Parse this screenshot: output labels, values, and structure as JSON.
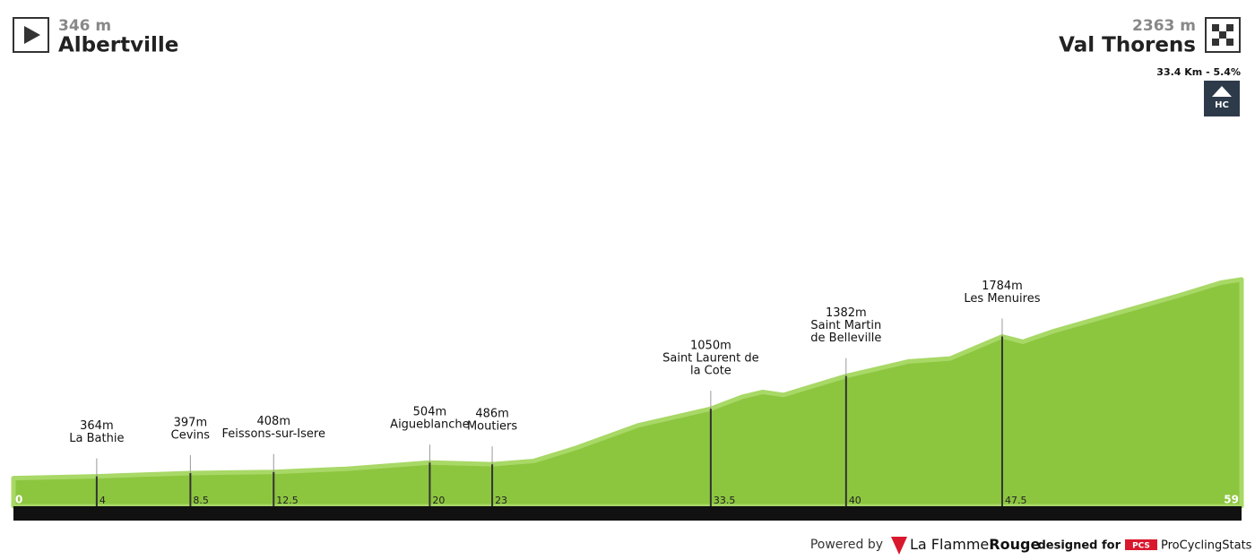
{
  "chart_data": {
    "type": "elevation-profile",
    "start": {
      "elevation": "346 m",
      "name": "Albertville"
    },
    "finish": {
      "elevation": "2363 m",
      "name": "Val Thorens"
    },
    "climb": {
      "info": "33.4 Km - 5.4%",
      "category": "HC"
    },
    "color": "#8cc63f",
    "top_color": "#a8d866",
    "xlim": [
      0,
      59
    ],
    "xticks": [
      0,
      59
    ],
    "ylim": [
      60,
      5000
    ],
    "profile": {
      "km": [
        0,
        4,
        8.5,
        12.5,
        16,
        20,
        23,
        25,
        27,
        30,
        33.5,
        35,
        36,
        37,
        40,
        43,
        45,
        47.5,
        48.5,
        50,
        53,
        56,
        58,
        59
      ],
      "elevation": [
        346,
        364,
        397,
        408,
        440,
        504,
        486,
        520,
        650,
        880,
        1050,
        1170,
        1220,
        1190,
        1382,
        1530,
        1560,
        1784,
        1730,
        1840,
        2020,
        2200,
        2330,
        2363
      ]
    },
    "waypoints": [
      {
        "km": 4,
        "elevation": 364,
        "elevation_label": "364m",
        "name": [
          "La Bathie"
        ]
      },
      {
        "km": 8.5,
        "elevation": 397,
        "elevation_label": "397m",
        "name": [
          "Cevins"
        ]
      },
      {
        "km": 12.5,
        "elevation": 408,
        "elevation_label": "408m",
        "name": [
          "Feissons-sur-Isere"
        ]
      },
      {
        "km": 20,
        "elevation": 504,
        "elevation_label": "504m",
        "name": [
          "Aigueblanche"
        ]
      },
      {
        "km": 23,
        "elevation": 486,
        "elevation_label": "486m",
        "name": [
          "Moutiers"
        ]
      },
      {
        "km": 33.5,
        "elevation": 1050,
        "elevation_label": "1050m",
        "name": [
          "Saint Laurent de",
          "la Cote"
        ]
      },
      {
        "km": 40,
        "elevation": 1382,
        "elevation_label": "1382m",
        "name": [
          "Saint Martin",
          "de Belleville"
        ]
      },
      {
        "km": 47.5,
        "elevation": 1784,
        "elevation_label": "1784m",
        "name": [
          "Les Menuires"
        ]
      }
    ],
    "footer": {
      "powered_by": "Powered by",
      "brand_a": "La Flamme",
      "brand_b": "Rouge",
      "designed_for": "designed for",
      "pcs": "PCS",
      "pcs_name": "ProCyclingStats"
    }
  }
}
